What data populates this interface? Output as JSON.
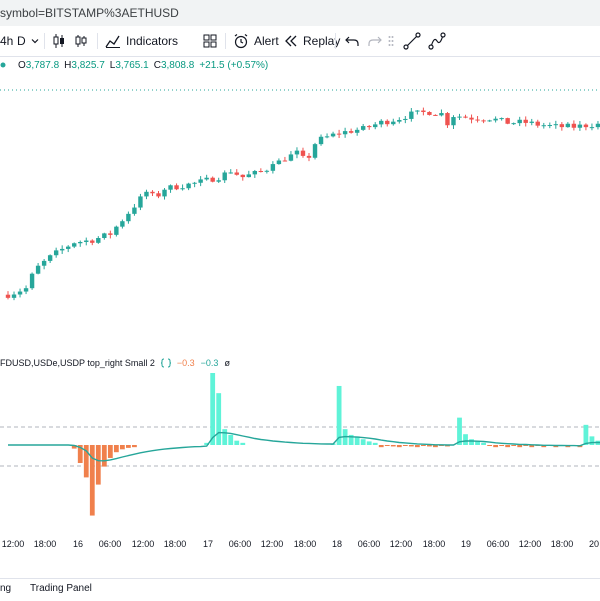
{
  "browser": {
    "url": "symbol=BITSTAMP%3AETHUSD"
  },
  "toolbar": {
    "interval": "4h",
    "interval_day": "D",
    "indicators_label": "Indicators",
    "alert_label": "Alert",
    "replay_label": "Replay"
  },
  "ohlc": {
    "open_key": "O",
    "open": "3,787.8",
    "high_key": "H",
    "high": "3,825.7",
    "low_key": "L",
    "low": "3,765.1",
    "close_key": "C",
    "close": "3,808.8",
    "change": "+21.5 (+0.57%)"
  },
  "indicator": {
    "name": "FDUSD,USDe,USDP top_right Small 2",
    "value1": "−0.3",
    "value2": "−0.3",
    "empty_icon": "ø"
  },
  "time_axis": [
    "12:00",
    "18:00",
    "16",
    "06:00",
    "12:00",
    "18:00",
    "17",
    "06:00",
    "12:00",
    "18:00",
    "18",
    "06:00",
    "12:00",
    "18:00",
    "19",
    "06:00",
    "12:00",
    "18:00",
    "20"
  ],
  "bottom": {
    "item1": "ng",
    "item2": "Trading Panel"
  },
  "colors": {
    "up": "#26a69a",
    "down": "#ef5350",
    "hist_pos": "#5ff3d8",
    "hist_neg": "#f0804c",
    "signal": "#26a69a",
    "accent": "#2962ff"
  },
  "icons": [
    "undo-icon",
    "redo-icon",
    "trend-line-icon",
    "path-tool-icon",
    "alert-clock-icon",
    "replay-icon",
    "templates-icon",
    "indicators-icon"
  ],
  "chart_data": {
    "type": "candlestick",
    "symbol": "BITSTAMP:ETHUSD",
    "interval": "4h",
    "note": "relative price shape reconstructed from the screenshot; no price scale visible",
    "price_range": [
      0,
      100
    ],
    "candles": [],
    "histogram_range": [
      -100,
      100
    ],
    "histogram": [],
    "signal": []
  }
}
